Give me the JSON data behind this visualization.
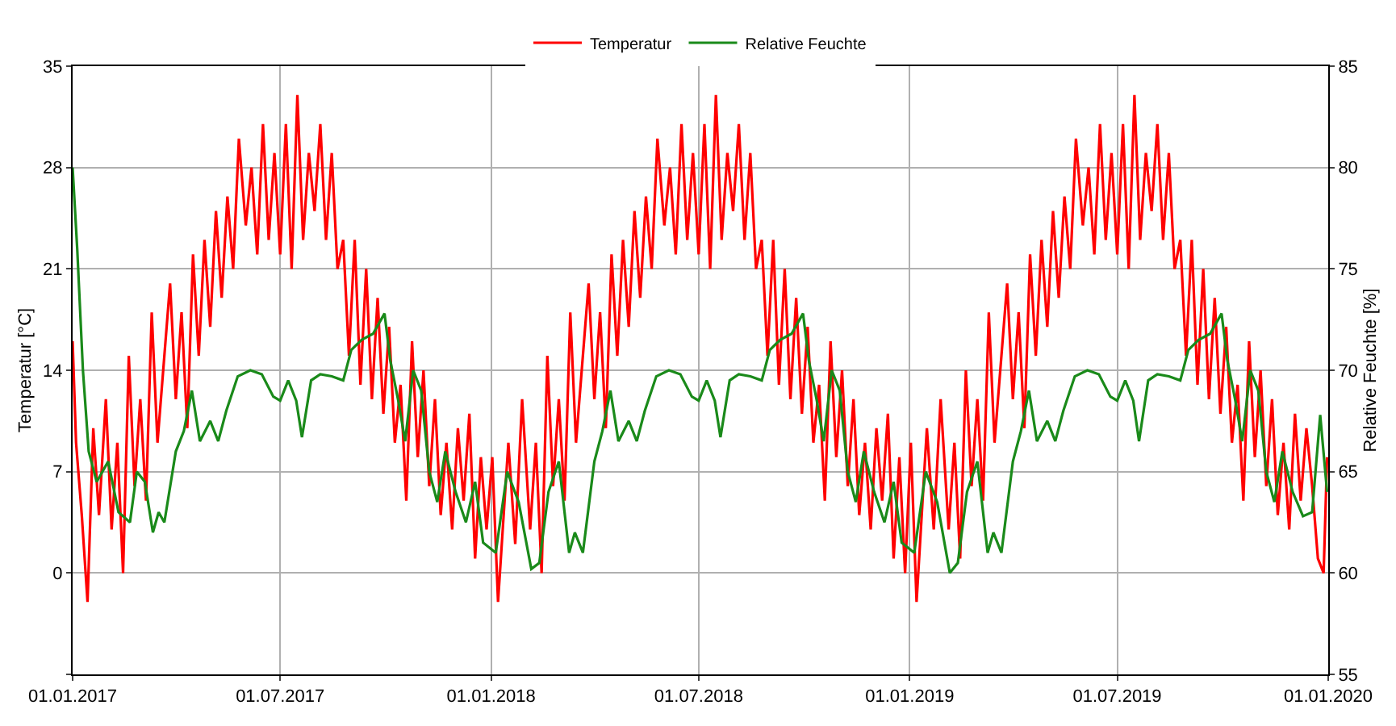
{
  "chart_data": {
    "type": "line",
    "ylabel": "Temperatur [°C]",
    "y2label": "Relative Feuchte [%]",
    "xlim": [
      "2017-01-01",
      "2020-01-01"
    ],
    "xticks": [
      {
        "value": "2017-01-01",
        "label": "01.01.2017"
      },
      {
        "value": "2017-07-01",
        "label": "01.07.2017"
      },
      {
        "value": "2018-01-01",
        "label": "01.01.2018"
      },
      {
        "value": "2018-07-01",
        "label": "01.07.2018"
      },
      {
        "value": "2019-01-01",
        "label": "01.01.2019"
      },
      {
        "value": "2019-07-01",
        "label": "01.07.2019"
      },
      {
        "value": "2020-01-01",
        "label": "01.01.2020"
      }
    ],
    "ylim": [
      -7,
      35
    ],
    "yticks": [
      {
        "value": -7,
        "label": null
      },
      0,
      7,
      14,
      21,
      28,
      35
    ],
    "y2lim": [
      55,
      85
    ],
    "y2ticks": [
      55,
      60,
      65,
      70,
      75,
      80,
      85
    ],
    "grid": true,
    "legend": "top",
    "marker": "none",
    "line_style": "solid",
    "series": [
      {
        "name": "Temperatur",
        "color": "#ff0000",
        "x": [
          "2017-01-01",
          "2017-01-04",
          "2017-01-09",
          "2017-01-14",
          "2017-01-19",
          "2017-01-24",
          "2017-01-30",
          "2017-02-04",
          "2017-02-09",
          "2017-02-14",
          "2017-02-19",
          "2017-02-24",
          "2017-03-01",
          "2017-03-06",
          "2017-03-11",
          "2017-03-16",
          "2017-03-22",
          "2017-03-27",
          "2017-04-01",
          "2017-04-06",
          "2017-04-11",
          "2017-04-16",
          "2017-04-21",
          "2017-04-26",
          "2017-05-01",
          "2017-05-06",
          "2017-05-11",
          "2017-05-16",
          "2017-05-21",
          "2017-05-26",
          "2017-06-01",
          "2017-06-06",
          "2017-06-11",
          "2017-06-16",
          "2017-06-21",
          "2017-06-26",
          "2017-07-01",
          "2017-07-06",
          "2017-07-11",
          "2017-07-16",
          "2017-07-21",
          "2017-07-26",
          "2017-07-31",
          "2017-08-05",
          "2017-08-10",
          "2017-08-15",
          "2017-08-20",
          "2017-08-25",
          "2017-08-30",
          "2017-09-04",
          "2017-09-09",
          "2017-09-14",
          "2017-09-19",
          "2017-09-24",
          "2017-09-29",
          "2017-10-04",
          "2017-10-09",
          "2017-10-14",
          "2017-10-19",
          "2017-10-24",
          "2017-10-29",
          "2017-11-03",
          "2017-11-08",
          "2017-11-13",
          "2017-11-18",
          "2017-11-23",
          "2017-11-28",
          "2017-12-03",
          "2017-12-08",
          "2017-12-13",
          "2017-12-18",
          "2017-12-23",
          "2017-12-28",
          "2018-01-02",
          "2018-01-07",
          "2018-01-16",
          "2018-01-22",
          "2018-01-28",
          "2018-02-04",
          "2018-02-09",
          "2018-02-14",
          "2018-02-19",
          "2018-02-24",
          "2018-03-01",
          "2018-03-06",
          "2018-03-11",
          "2018-03-16",
          "2018-03-22",
          "2018-03-27",
          "2018-04-01",
          "2018-04-06",
          "2018-04-11",
          "2018-04-16",
          "2018-04-21",
          "2018-04-26",
          "2018-05-01",
          "2018-05-06",
          "2018-05-11",
          "2018-05-16",
          "2018-05-21",
          "2018-05-26",
          "2018-06-01",
          "2018-06-06",
          "2018-06-11",
          "2018-06-16",
          "2018-06-21",
          "2018-06-26",
          "2018-07-01",
          "2018-07-06",
          "2018-07-11",
          "2018-07-16",
          "2018-07-21",
          "2018-07-26",
          "2018-07-31",
          "2018-08-05",
          "2018-08-10",
          "2018-08-15",
          "2018-08-20",
          "2018-08-25",
          "2018-08-30",
          "2018-09-04",
          "2018-09-09",
          "2018-09-14",
          "2018-09-19",
          "2018-09-24",
          "2018-09-29",
          "2018-10-04",
          "2018-10-09",
          "2018-10-14",
          "2018-10-19",
          "2018-10-24",
          "2018-10-29",
          "2018-11-03",
          "2018-11-08",
          "2018-11-13",
          "2018-11-18",
          "2018-11-23",
          "2018-11-28",
          "2018-12-03",
          "2018-12-08",
          "2018-12-13",
          "2018-12-18",
          "2018-12-23",
          "2018-12-28",
          "2019-01-02",
          "2019-01-07",
          "2019-01-16",
          "2019-01-22",
          "2019-01-28",
          "2019-02-04",
          "2019-02-09",
          "2019-02-14",
          "2019-02-19",
          "2019-02-24",
          "2019-03-01",
          "2019-03-06",
          "2019-03-11",
          "2019-03-16",
          "2019-03-22",
          "2019-03-27",
          "2019-04-01",
          "2019-04-06",
          "2019-04-11",
          "2019-04-16",
          "2019-04-21",
          "2019-04-26",
          "2019-05-01",
          "2019-05-06",
          "2019-05-11",
          "2019-05-16",
          "2019-05-21",
          "2019-05-26",
          "2019-06-01",
          "2019-06-06",
          "2019-06-11",
          "2019-06-16",
          "2019-06-21",
          "2019-06-26",
          "2019-07-01",
          "2019-07-06",
          "2019-07-11",
          "2019-07-16",
          "2019-07-21",
          "2019-07-26",
          "2019-07-31",
          "2019-08-05",
          "2019-08-10",
          "2019-08-15",
          "2019-08-20",
          "2019-08-25",
          "2019-08-30",
          "2019-09-04",
          "2019-09-09",
          "2019-09-14",
          "2019-09-19",
          "2019-09-24",
          "2019-09-29",
          "2019-10-04",
          "2019-10-09",
          "2019-10-14",
          "2019-10-19",
          "2019-10-24",
          "2019-10-29",
          "2019-11-03",
          "2019-11-08",
          "2019-11-13",
          "2019-11-18",
          "2019-11-23",
          "2019-11-28",
          "2019-12-03",
          "2019-12-08",
          "2019-12-13",
          "2019-12-18",
          "2019-12-23",
          "2019-12-28",
          "2019-12-31"
        ],
        "values": [
          16,
          9,
          4,
          -2,
          10,
          4,
          12,
          3,
          9,
          0,
          15,
          6,
          12,
          5,
          18,
          9,
          15,
          20,
          12,
          18,
          10,
          22,
          15,
          23,
          17,
          25,
          19,
          26,
          21,
          30,
          24,
          28,
          22,
          31,
          23,
          29,
          22,
          31,
          21,
          33,
          23,
          29,
          25,
          31,
          23,
          29,
          21,
          23,
          15,
          23,
          13,
          21,
          12,
          19,
          11,
          17,
          9,
          13,
          5,
          16,
          8,
          14,
          6,
          12,
          4,
          9,
          3,
          10,
          5,
          11,
          1,
          8,
          3,
          8,
          -2,
          9,
          2,
          12,
          3,
          9,
          0,
          15,
          6,
          12,
          5,
          18,
          9,
          15,
          20,
          12,
          18,
          10,
          22,
          15,
          23,
          17,
          25,
          19,
          26,
          21,
          30,
          24,
          28,
          22,
          31,
          23,
          29,
          22,
          31,
          21,
          33,
          23,
          29,
          25,
          31,
          23,
          29,
          21,
          23,
          15,
          23,
          13,
          21,
          12,
          19,
          11,
          17,
          9,
          13,
          5,
          16,
          8,
          14,
          6,
          12,
          4,
          9,
          3,
          10,
          5,
          11,
          1,
          8,
          0,
          9,
          -2,
          10,
          3,
          12,
          3,
          9,
          1,
          14,
          6,
          12,
          5,
          18,
          9,
          15,
          20,
          12,
          18,
          10,
          22,
          15,
          23,
          17,
          25,
          19,
          26,
          21,
          30,
          24,
          28,
          22,
          31,
          23,
          29,
          22,
          31,
          21,
          33,
          23,
          29,
          25,
          31,
          23,
          29,
          21,
          23,
          15,
          23,
          13,
          21,
          12,
          19,
          11,
          17,
          9,
          13,
          5,
          16,
          8,
          14,
          6,
          12,
          4,
          9,
          3,
          11,
          5,
          10,
          6,
          1,
          0,
          8
        ]
      },
      {
        "name": "Relative Feuchte",
        "color": "#1a8a1a",
        "axis": "y2",
        "x": [
          "2017-01-01",
          "2017-01-05",
          "2017-01-10",
          "2017-01-15",
          "2017-01-22",
          "2017-02-01",
          "2017-02-10",
          "2017-02-20",
          "2017-02-26",
          "2017-03-05",
          "2017-03-12",
          "2017-03-17",
          "2017-03-22",
          "2017-04-01",
          "2017-04-08",
          "2017-04-15",
          "2017-04-22",
          "2017-05-01",
          "2017-05-08",
          "2017-05-15",
          "2017-05-25",
          "2017-06-05",
          "2017-06-15",
          "2017-06-25",
          "2017-07-01",
          "2017-07-08",
          "2017-07-15",
          "2017-07-20",
          "2017-07-28",
          "2017-08-05",
          "2017-08-15",
          "2017-08-25",
          "2017-09-01",
          "2017-09-10",
          "2017-09-20",
          "2017-09-30",
          "2017-10-05",
          "2017-10-12",
          "2017-10-18",
          "2017-10-25",
          "2017-11-01",
          "2017-11-08",
          "2017-11-15",
          "2017-11-22",
          "2017-12-01",
          "2017-12-10",
          "2017-12-18",
          "2017-12-25",
          "2018-01-05",
          "2018-01-15",
          "2018-01-25",
          "2018-02-05",
          "2018-02-12",
          "2018-02-20",
          "2018-03-01",
          "2018-03-10",
          "2018-03-15",
          "2018-03-22",
          "2018-04-01",
          "2018-04-08",
          "2018-04-15",
          "2018-04-22",
          "2018-05-01",
          "2018-05-08",
          "2018-05-15",
          "2018-05-25",
          "2018-06-05",
          "2018-06-15",
          "2018-06-25",
          "2018-07-01",
          "2018-07-08",
          "2018-07-15",
          "2018-07-20",
          "2018-07-28",
          "2018-08-05",
          "2018-08-15",
          "2018-08-25",
          "2018-09-01",
          "2018-09-10",
          "2018-09-20",
          "2018-09-30",
          "2018-10-05",
          "2018-10-12",
          "2018-10-18",
          "2018-10-25",
          "2018-11-01",
          "2018-11-08",
          "2018-11-15",
          "2018-11-22",
          "2018-12-01",
          "2018-12-10",
          "2018-12-18",
          "2018-12-25",
          "2019-01-05",
          "2019-01-15",
          "2019-01-25",
          "2019-02-05",
          "2019-02-12",
          "2019-02-20",
          "2019-03-01",
          "2019-03-10",
          "2019-03-15",
          "2019-03-22",
          "2019-04-01",
          "2019-04-08",
          "2019-04-15",
          "2019-04-22",
          "2019-05-01",
          "2019-05-08",
          "2019-05-15",
          "2019-05-25",
          "2019-06-05",
          "2019-06-15",
          "2019-06-25",
          "2019-07-01",
          "2019-07-08",
          "2019-07-15",
          "2019-07-20",
          "2019-07-28",
          "2019-08-05",
          "2019-08-15",
          "2019-08-25",
          "2019-09-01",
          "2019-09-10",
          "2019-09-20",
          "2019-09-30",
          "2019-10-05",
          "2019-10-12",
          "2019-10-18",
          "2019-10-25",
          "2019-11-01",
          "2019-11-08",
          "2019-11-15",
          "2019-11-22",
          "2019-12-01",
          "2019-12-10",
          "2019-12-18",
          "2019-12-25",
          "2019-12-31"
        ],
        "values": [
          80,
          76,
          70,
          66,
          64.5,
          65.5,
          63,
          62.5,
          65,
          64.5,
          62,
          63,
          62.5,
          66,
          67,
          69,
          66.5,
          67.5,
          66.5,
          68,
          69.7,
          70,
          69.8,
          68.7,
          68.5,
          69.5,
          68.5,
          66.7,
          69.5,
          69.8,
          69.7,
          69.5,
          71,
          71.5,
          71.8,
          72.8,
          70.5,
          68.5,
          66.5,
          70,
          69,
          65,
          63.5,
          66,
          64,
          62.5,
          64.5,
          61.5,
          61,
          65,
          63.5,
          60.2,
          60.5,
          64,
          65.5,
          61,
          62,
          61,
          65.5,
          67,
          69,
          66.5,
          67.5,
          66.5,
          68,
          69.7,
          70,
          69.8,
          68.7,
          68.5,
          69.5,
          68.5,
          66.7,
          69.5,
          69.8,
          69.7,
          69.5,
          71,
          71.5,
          71.8,
          72.8,
          70.5,
          68.5,
          66.5,
          70,
          69,
          65,
          63.5,
          66,
          64,
          62.5,
          64.5,
          61.5,
          61,
          65,
          63.5,
          60,
          60.5,
          64,
          65.5,
          61,
          62,
          61,
          65.5,
          67,
          69,
          66.5,
          67.5,
          66.5,
          68,
          69.7,
          70,
          69.8,
          68.7,
          68.5,
          69.5,
          68.5,
          66.5,
          69.5,
          69.8,
          69.7,
          69.5,
          71,
          71.5,
          71.8,
          72.8,
          70.5,
          68.5,
          66.5,
          70,
          69,
          65,
          63.5,
          66,
          64,
          62.8,
          63,
          67.8,
          64
        ]
      }
    ]
  }
}
